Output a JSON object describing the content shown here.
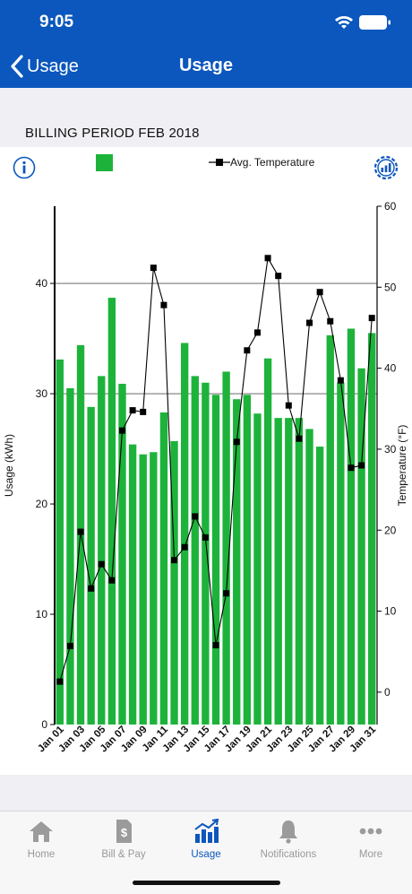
{
  "status_bar": {
    "time": "9:05"
  },
  "nav": {
    "back_label": "Usage",
    "title": "Usage"
  },
  "billing_period": "BILLING PERIOD FEB 2018",
  "legend": {
    "temperature_label": "Avg. Temperature"
  },
  "colors": {
    "brand": "#0b57bd",
    "bar": "#1db33b",
    "line": "#000000"
  },
  "chart_data": {
    "type": "bar",
    "xlabel": "",
    "ylabel": "Usage (kWh)",
    "y2label": "Temperature (°F)",
    "ylim": [
      0,
      47
    ],
    "y2lim": [
      -4,
      60
    ],
    "yticks": [
      0,
      10,
      20,
      30,
      40
    ],
    "y2ticks": [
      0,
      10,
      20,
      30,
      40,
      50,
      60
    ],
    "gridlines": [
      30,
      40
    ],
    "categories": [
      "Jan 01",
      "Jan 02",
      "Jan 03",
      "Jan 04",
      "Jan 05",
      "Jan 06",
      "Jan 07",
      "Jan 08",
      "Jan 09",
      "Jan 10",
      "Jan 11",
      "Jan 12",
      "Jan 13",
      "Jan 14",
      "Jan 15",
      "Jan 16",
      "Jan 17",
      "Jan 18",
      "Jan 19",
      "Jan 20",
      "Jan 21",
      "Jan 22",
      "Jan 23",
      "Jan 24",
      "Jan 25",
      "Jan 26",
      "Jan 27",
      "Jan 28",
      "Jan 29",
      "Jan 30",
      "Jan 31"
    ],
    "x_tick_labels": [
      "Jan 01",
      "Jan 03",
      "Jan 05",
      "Jan 07",
      "Jan 09",
      "Jan 11",
      "Jan 13",
      "Jan 15",
      "Jan 17",
      "Jan 19",
      "Jan 21",
      "Jan 23",
      "Jan 25",
      "Jan 27",
      "Jan 29",
      "Jan 31"
    ],
    "series": [
      {
        "type": "bar",
        "axis": "left",
        "values": [
          33.1,
          30.5,
          34.4,
          28.8,
          31.6,
          38.7,
          30.9,
          25.4,
          24.5,
          24.7,
          28.3,
          25.7,
          34.6,
          31.6,
          31.0,
          29.9,
          32.0,
          29.5,
          29.9,
          28.2,
          33.2,
          27.8,
          27.8,
          27.8,
          26.8,
          25.2,
          35.3,
          31.0,
          35.9,
          32.3,
          35.5
        ]
      },
      {
        "type": "line",
        "name": "Avg. Temperature",
        "axis": "right",
        "values": [
          1.3,
          5.7,
          19.8,
          12.8,
          15.8,
          13.8,
          32.3,
          34.8,
          34.6,
          52.4,
          47.8,
          16.3,
          17.9,
          21.7,
          19.1,
          5.8,
          12.2,
          30.9,
          42.2,
          44.4,
          53.6,
          51.4,
          35.4,
          31.3,
          45.6,
          49.4,
          45.8,
          38.5,
          27.7,
          28.0,
          46.2
        ]
      }
    ]
  },
  "tabs": [
    {
      "label": "Home",
      "icon": "home-icon",
      "active": false
    },
    {
      "label": "Bill & Pay",
      "icon": "bill-icon",
      "active": false
    },
    {
      "label": "Usage",
      "icon": "usage-chart-icon",
      "active": true
    },
    {
      "label": "Notifications",
      "icon": "bell-icon",
      "active": false
    },
    {
      "label": "More",
      "icon": "more-dots-icon",
      "active": false
    }
  ]
}
